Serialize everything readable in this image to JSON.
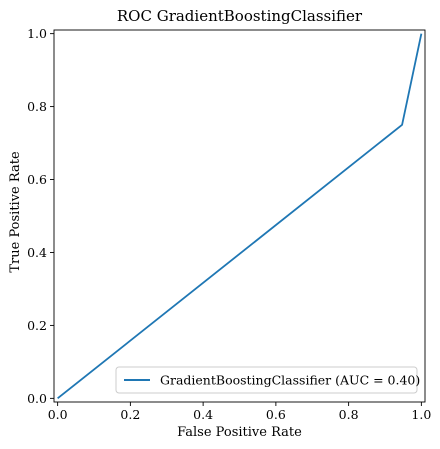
{
  "chart_data": {
    "type": "line",
    "title": "ROC GradientBoostingClassifier",
    "xlabel": "False Positive Rate",
    "ylabel": "True Positive Rate",
    "xlim": [
      -0.01,
      1.01
    ],
    "ylim": [
      -0.01,
      1.01
    ],
    "xticks": [
      "0.0",
      "0.2",
      "0.4",
      "0.6",
      "0.8",
      "1.0"
    ],
    "yticks": [
      "0.0",
      "0.2",
      "0.4",
      "0.6",
      "0.8",
      "1.0"
    ],
    "grid": false,
    "legend_position": "lower-right",
    "series": [
      {
        "name": "GradientBoostingClassifier (AUC = 0.40)",
        "color": "#1f77b4",
        "x": [
          0.0,
          0.947,
          1.0
        ],
        "y": [
          0.0,
          0.75,
          1.0
        ]
      }
    ]
  }
}
